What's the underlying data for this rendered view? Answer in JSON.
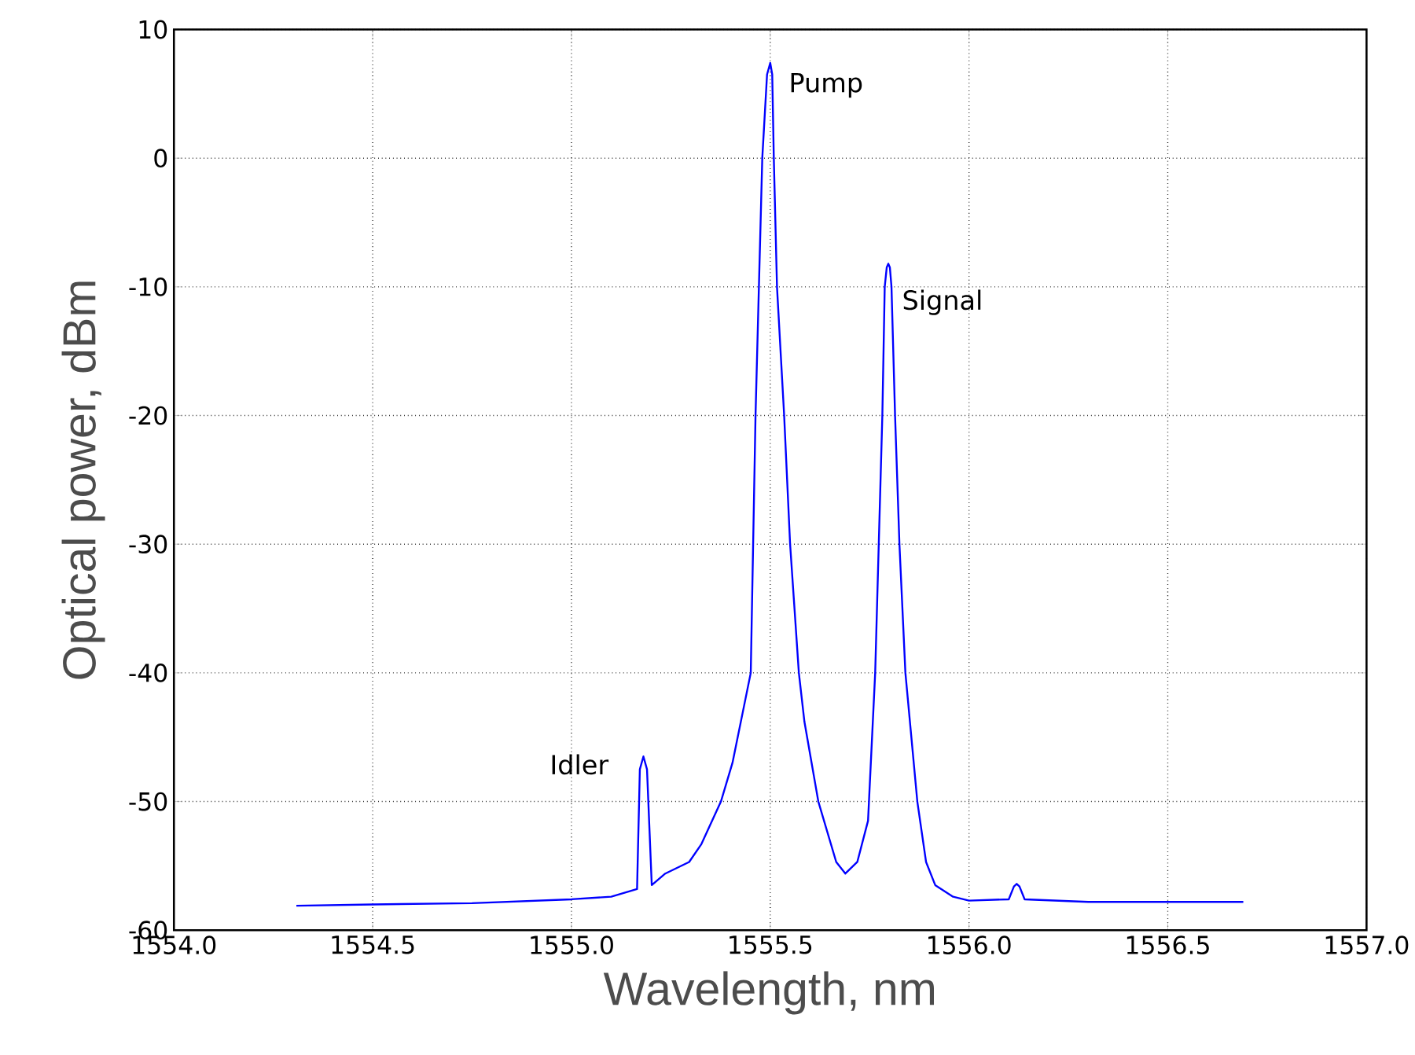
{
  "chart_data": {
    "type": "line",
    "xlabel": "Wavelength, nm",
    "ylabel": "Optical power, dBm",
    "xlim": [
      1554.0,
      1557.0
    ],
    "ylim": [
      -60,
      10
    ],
    "xticks": [
      {
        "value": 1554.0,
        "label": "1554.0"
      },
      {
        "value": 1554.5,
        "label": "1554.5"
      },
      {
        "value": 1555.0,
        "label": "1555.0"
      },
      {
        "value": 1555.5,
        "label": "1555.5"
      },
      {
        "value": 1556.0,
        "label": "1556.0"
      },
      {
        "value": 1556.5,
        "label": "1556.5"
      },
      {
        "value": 1557.0,
        "label": "1557.0"
      }
    ],
    "yticks": [
      -60,
      -50,
      -40,
      -30,
      -20,
      -10,
      0,
      10
    ],
    "grid": true,
    "marker": "none",
    "line_style": "solid",
    "series": [
      {
        "color": "#0000ff",
        "x": [
          1554.308,
          1554.5,
          1554.75,
          1555.0,
          1555.1,
          1555.165,
          1555.172,
          1555.181,
          1555.19,
          1555.202,
          1555.236,
          1555.296,
          1555.327,
          1555.376,
          1555.405,
          1555.451,
          1555.463,
          1555.48,
          1555.492,
          1555.5,
          1555.505,
          1555.509,
          1555.517,
          1555.535,
          1555.55,
          1555.572,
          1555.586,
          1555.621,
          1555.666,
          1555.689,
          1555.719,
          1555.746,
          1555.764,
          1555.782,
          1555.788,
          1555.793,
          1555.797,
          1555.801,
          1555.805,
          1555.814,
          1555.825,
          1555.84,
          1555.87,
          1555.892,
          1555.915,
          1555.96,
          1556.0,
          1556.1,
          1556.113,
          1556.12,
          1556.127,
          1556.14,
          1556.3,
          1556.5,
          1556.69
        ],
        "values": [
          -58.1,
          -58.0,
          -57.9,
          -57.6,
          -57.4,
          -56.8,
          -47.5,
          -46.5,
          -47.5,
          -56.5,
          -55.6,
          -54.7,
          -53.3,
          -50.0,
          -47.0,
          -40.0,
          -20.0,
          0.0,
          6.5,
          7.4,
          6.5,
          0.0,
          -10.0,
          -20.0,
          -30.0,
          -40.0,
          -43.8,
          -50.0,
          -54.7,
          -55.6,
          -54.7,
          -51.5,
          -40.0,
          -20.0,
          -10.0,
          -8.5,
          -8.2,
          -8.5,
          -10.0,
          -20.0,
          -30.0,
          -40.0,
          -50.0,
          -54.7,
          -56.5,
          -57.4,
          -57.7,
          -57.6,
          -56.6,
          -56.4,
          -56.6,
          -57.6,
          -57.8,
          -57.8,
          -57.8
        ]
      }
    ],
    "annotations": [
      "Pump",
      "Signal",
      "Idler"
    ]
  }
}
